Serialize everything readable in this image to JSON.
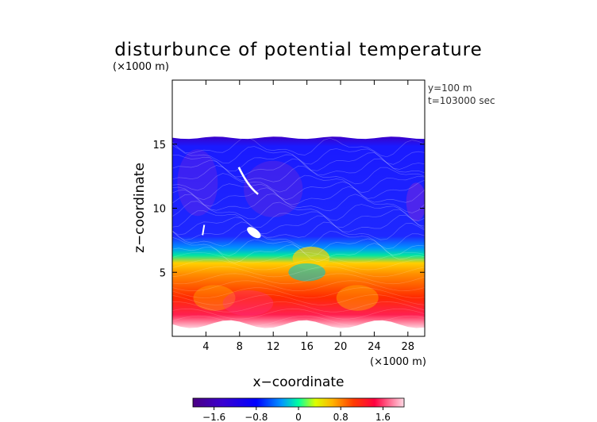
{
  "chart_data": {
    "type": "heatmap",
    "title": "disturbunce of potential temperature",
    "yunit_label": "(×1000 m)",
    "xunit_label": "(×1000 m)",
    "xlabel": "x−coordinate",
    "ylabel": "z−coordinate",
    "annotations": [
      "y=100 m",
      "t=103000 sec"
    ],
    "xlim": [
      0,
      30
    ],
    "ylim": [
      0,
      20
    ],
    "xticks": [
      4,
      8,
      12,
      16,
      20,
      24,
      28
    ],
    "yticks": [
      5,
      10,
      15
    ],
    "xtick_labels": [
      "4",
      "8",
      "12",
      "16",
      "20",
      "24",
      "28"
    ],
    "ytick_labels": [
      "5",
      "10",
      "15"
    ],
    "colorbar": {
      "range": [
        -2.0,
        2.0
      ],
      "ticks": [
        -1.6,
        -0.8,
        0,
        0.8,
        1.6
      ],
      "tick_labels": [
        "−1.6",
        "−0.8",
        "0",
        "0.8",
        "1.6"
      ],
      "colors": [
        "#5a00b4",
        "#0000ff",
        "#00b4ff",
        "#00ff80",
        "#ffff00",
        "#ff8000",
        "#ff0000",
        "#ffd0e0"
      ]
    },
    "field_description_levels": {
      "top_of_field_z": 15.5,
      "cold_layer_values": -1.4,
      "warm_layer_values": 1.6
    }
  }
}
